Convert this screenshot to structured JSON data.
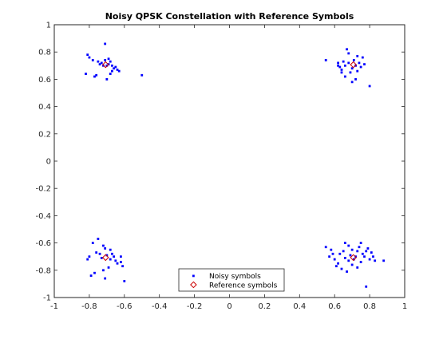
{
  "chart_data": {
    "type": "scatter",
    "title": "Noisy QPSK Constellation with Reference Symbols",
    "xlabel": "",
    "ylabel": "",
    "xlim": [
      -1,
      1
    ],
    "ylim": [
      -1,
      1
    ],
    "xticks": [
      -1,
      -0.8,
      -0.6,
      -0.4,
      -0.2,
      0,
      0.2,
      0.4,
      0.6,
      0.8,
      1
    ],
    "yticks": [
      -1,
      -0.8,
      -0.6,
      -0.4,
      -0.2,
      0,
      0.2,
      0.4,
      0.6,
      0.8,
      1
    ],
    "xtick_labels": [
      "-1",
      "-0.8",
      "-0.6",
      "-0.4",
      "-0.2",
      "0",
      "0.2",
      "0.4",
      "0.6",
      "0.8",
      "1"
    ],
    "ytick_labels": [
      "-1",
      "-0.8",
      "-0.6",
      "-0.4",
      "-0.2",
      "0",
      "0.2",
      "0.4",
      "0.6",
      "0.8",
      "1"
    ],
    "grid": false,
    "legend_position": "bottom-center",
    "series": [
      {
        "name": "Noisy symbols",
        "marker": "square",
        "color": "#0000ff",
        "points": [
          [
            -0.81,
            0.78
          ],
          [
            -0.8,
            0.76
          ],
          [
            -0.78,
            0.74
          ],
          [
            -0.75,
            0.73
          ],
          [
            -0.73,
            0.72
          ],
          [
            -0.71,
            0.74
          ],
          [
            -0.7,
            0.7
          ],
          [
            -0.69,
            0.71
          ],
          [
            -0.68,
            0.73
          ],
          [
            -0.67,
            0.7
          ],
          [
            -0.66,
            0.68
          ],
          [
            -0.65,
            0.69
          ],
          [
            -0.64,
            0.67
          ],
          [
            -0.67,
            0.66
          ],
          [
            -0.68,
            0.64
          ],
          [
            -0.72,
            0.7
          ],
          [
            -0.74,
            0.71
          ],
          [
            -0.77,
            0.62
          ],
          [
            -0.76,
            0.63
          ],
          [
            -0.7,
            0.6
          ],
          [
            -0.82,
            0.64
          ],
          [
            -0.71,
            0.86
          ],
          [
            -0.63,
            0.66
          ],
          [
            -0.69,
            0.75
          ],
          [
            -0.5,
            0.63
          ],
          [
            0.55,
            0.74
          ],
          [
            0.62,
            0.72
          ],
          [
            0.63,
            0.69
          ],
          [
            0.64,
            0.67
          ],
          [
            0.65,
            0.73
          ],
          [
            0.66,
            0.7
          ],
          [
            0.67,
            0.82
          ],
          [
            0.68,
            0.72
          ],
          [
            0.69,
            0.65
          ],
          [
            0.7,
            0.68
          ],
          [
            0.71,
            0.74
          ],
          [
            0.72,
            0.7
          ],
          [
            0.73,
            0.77
          ],
          [
            0.74,
            0.72
          ],
          [
            0.75,
            0.69
          ],
          [
            0.76,
            0.76
          ],
          [
            0.77,
            0.71
          ],
          [
            0.73,
            0.66
          ],
          [
            0.66,
            0.62
          ],
          [
            0.7,
            0.58
          ],
          [
            0.68,
            0.79
          ],
          [
            0.8,
            0.55
          ],
          [
            0.64,
            0.65
          ],
          [
            0.62,
            0.7
          ],
          [
            0.72,
            0.6
          ],
          [
            -0.75,
            -0.57
          ],
          [
            -0.78,
            -0.6
          ],
          [
            -0.72,
            -0.62
          ],
          [
            -0.71,
            -0.64
          ],
          [
            -0.74,
            -0.68
          ],
          [
            -0.76,
            -0.67
          ],
          [
            -0.7,
            -0.69
          ],
          [
            -0.68,
            -0.72
          ],
          [
            -0.66,
            -0.7
          ],
          [
            -0.65,
            -0.73
          ],
          [
            -0.64,
            -0.75
          ],
          [
            -0.62,
            -0.74
          ],
          [
            -0.61,
            -0.77
          ],
          [
            -0.69,
            -0.78
          ],
          [
            -0.72,
            -0.8
          ],
          [
            -0.77,
            -0.82
          ],
          [
            -0.79,
            -0.84
          ],
          [
            -0.8,
            -0.7
          ],
          [
            -0.81,
            -0.72
          ],
          [
            -0.68,
            -0.65
          ],
          [
            -0.71,
            -0.86
          ],
          [
            -0.6,
            -0.88
          ],
          [
            -0.73,
            -0.71
          ],
          [
            -0.67,
            -0.68
          ],
          [
            -0.62,
            -0.7
          ],
          [
            0.55,
            -0.63
          ],
          [
            0.58,
            -0.65
          ],
          [
            0.57,
            -0.7
          ],
          [
            0.6,
            -0.72
          ],
          [
            0.62,
            -0.75
          ],
          [
            0.63,
            -0.68
          ],
          [
            0.65,
            -0.66
          ],
          [
            0.66,
            -0.6
          ],
          [
            0.68,
            -0.62
          ],
          [
            0.69,
            -0.69
          ],
          [
            0.7,
            -0.65
          ],
          [
            0.71,
            -0.72
          ],
          [
            0.72,
            -0.7
          ],
          [
            0.73,
            -0.66
          ],
          [
            0.74,
            -0.63
          ],
          [
            0.75,
            -0.6
          ],
          [
            0.76,
            -0.68
          ],
          [
            0.77,
            -0.7
          ],
          [
            0.78,
            -0.66
          ],
          [
            0.79,
            -0.64
          ],
          [
            0.8,
            -0.72
          ],
          [
            0.82,
            -0.7
          ],
          [
            0.83,
            -0.73
          ],
          [
            0.88,
            -0.73
          ],
          [
            0.64,
            -0.79
          ],
          [
            0.67,
            -0.81
          ],
          [
            0.78,
            -0.92
          ],
          [
            0.61,
            -0.77
          ],
          [
            0.7,
            -0.76
          ],
          [
            0.75,
            -0.74
          ],
          [
            0.59,
            -0.68
          ],
          [
            0.68,
            -0.73
          ],
          [
            0.73,
            -0.78
          ],
          [
            0.81,
            -0.67
          ],
          [
            0.66,
            -0.71
          ]
        ]
      },
      {
        "name": "Reference symbols",
        "marker": "diamond",
        "color": "#cc0000",
        "points": [
          [
            -0.7071,
            0.7071
          ],
          [
            0.7071,
            0.7071
          ],
          [
            -0.7071,
            -0.7071
          ],
          [
            0.7071,
            -0.7071
          ]
        ]
      }
    ]
  }
}
